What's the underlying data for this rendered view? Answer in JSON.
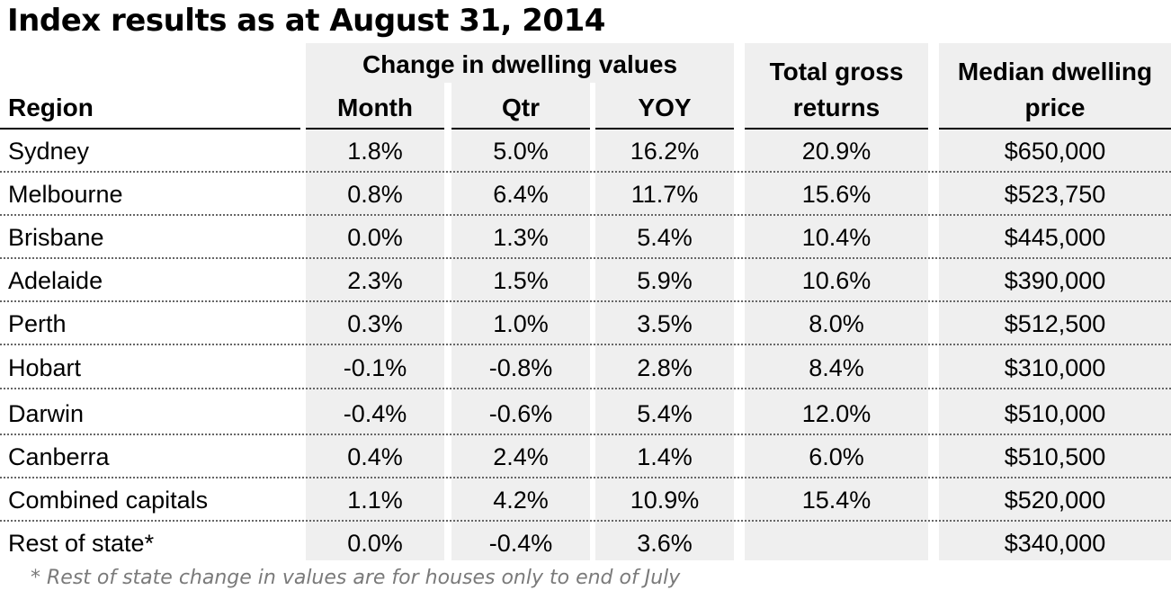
{
  "title": "Index results as at August 31, 2014",
  "headers": {
    "group": "Change in dwelling values",
    "region": "Region",
    "month": "Month",
    "qtr": "Qtr",
    "yoy": "YOY",
    "returns_line1": "Total gross",
    "returns_line2": "returns",
    "price_line1": "Median dwelling",
    "price_line2": "price"
  },
  "rows": [
    {
      "region": "Sydney",
      "month": "1.8%",
      "qtr": "5.0%",
      "yoy": "16.2%",
      "returns": "20.9%",
      "price": "$650,000"
    },
    {
      "region": "Melbourne",
      "month": "0.8%",
      "qtr": "6.4%",
      "yoy": "11.7%",
      "returns": "15.6%",
      "price": "$523,750"
    },
    {
      "region": "Brisbane",
      "month": "0.0%",
      "qtr": "1.3%",
      "yoy": "5.4%",
      "returns": "10.4%",
      "price": "$445,000"
    },
    {
      "region": "Adelaide",
      "month": "2.3%",
      "qtr": "1.5%",
      "yoy": "5.9%",
      "returns": "10.6%",
      "price": "$390,000"
    },
    {
      "region": "Perth",
      "month": "0.3%",
      "qtr": "1.0%",
      "yoy": "3.5%",
      "returns": "8.0%",
      "price": "$512,500"
    },
    {
      "region": "Hobart",
      "month": "-0.1%",
      "qtr": "-0.8%",
      "yoy": "2.8%",
      "returns": "8.4%",
      "price": "$310,000"
    },
    {
      "region": "Darwin",
      "month": "-0.4%",
      "qtr": "-0.6%",
      "yoy": "5.4%",
      "returns": "12.0%",
      "price": "$510,000"
    },
    {
      "region": "Canberra",
      "month": "0.4%",
      "qtr": "2.4%",
      "yoy": "1.4%",
      "returns": "6.0%",
      "price": "$510,500"
    },
    {
      "region": "Combined capitals",
      "month": "1.1%",
      "qtr": "4.2%",
      "yoy": "10.9%",
      "returns": "15.4%",
      "price": "$520,000"
    },
    {
      "region": "Rest of state*",
      "month": "0.0%",
      "qtr": "-0.4%",
      "yoy": "3.6%",
      "returns": "",
      "price": "$340,000"
    }
  ],
  "footnote": "* Rest of state change in values are for houses only to end of July"
}
